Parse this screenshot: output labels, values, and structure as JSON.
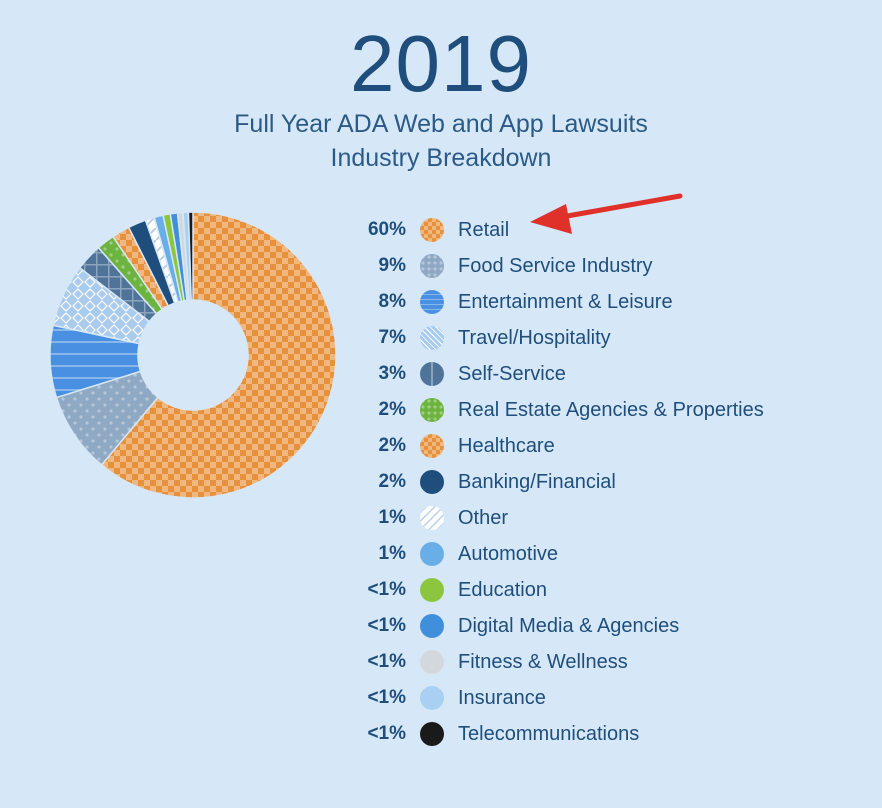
{
  "header": {
    "year": "2019",
    "subtitle_line1": "Full Year ADA Web and App Lawsuits",
    "subtitle_line2": "Industry Breakdown"
  },
  "chart_data": {
    "type": "pie",
    "title": "2019",
    "subtitle": "Full Year ADA Web and App Lawsuits Industry Breakdown",
    "legend_placement": "right",
    "slices": [
      {
        "label": "Retail",
        "display": "60%",
        "value": 60,
        "color": "#e8913c",
        "pattern": "checker"
      },
      {
        "label": "Food Service Industry",
        "display": "9%",
        "value": 9,
        "color": "#8fa9c4",
        "pattern": "dots"
      },
      {
        "label": "Entertainment & Leisure",
        "display": "8%",
        "value": 8,
        "color": "#4a90e2",
        "pattern": "hlines"
      },
      {
        "label": "Travel/Hospitality",
        "display": "7%",
        "value": 7,
        "color": "#a9cbee",
        "pattern": "diamond"
      },
      {
        "label": "Self-Service",
        "display": "3%",
        "value": 3,
        "color": "#4f7399",
        "pattern": "grid"
      },
      {
        "label": "Real Estate Agencies & Properties",
        "display": "2%",
        "value": 2,
        "color": "#6db33f",
        "pattern": "dots"
      },
      {
        "label": "Healthcare",
        "display": "2%",
        "value": 2,
        "color": "#e8913c",
        "pattern": "checker"
      },
      {
        "label": "Banking/Financial",
        "display": "2%",
        "value": 2,
        "color": "#1f4e7c",
        "pattern": "solid"
      },
      {
        "label": "Other",
        "display": "1%",
        "value": 1,
        "color": "#ffffff",
        "pattern": "stripes"
      },
      {
        "label": "Automotive",
        "display": "1%",
        "value": 1,
        "color": "#6aaee8",
        "pattern": "solid"
      },
      {
        "label": "Education",
        "display": "<1%",
        "value": 0.8,
        "color": "#8cc63f",
        "pattern": "solid"
      },
      {
        "label": "Digital Media & Agencies",
        "display": "<1%",
        "value": 0.8,
        "color": "#3f8fdc",
        "pattern": "solid"
      },
      {
        "label": "Fitness & Wellness",
        "display": "<1%",
        "value": 0.6,
        "color": "#d3d8de",
        "pattern": "solid"
      },
      {
        "label": "Insurance",
        "display": "<1%",
        "value": 0.6,
        "color": "#a8d0f2",
        "pattern": "solid"
      },
      {
        "label": "Telecommunications",
        "display": "<1%",
        "value": 0.5,
        "color": "#1a1a1a",
        "pattern": "solid"
      }
    ]
  },
  "annotation": {
    "arrow_color": "#e0302a",
    "target": "Retail"
  }
}
